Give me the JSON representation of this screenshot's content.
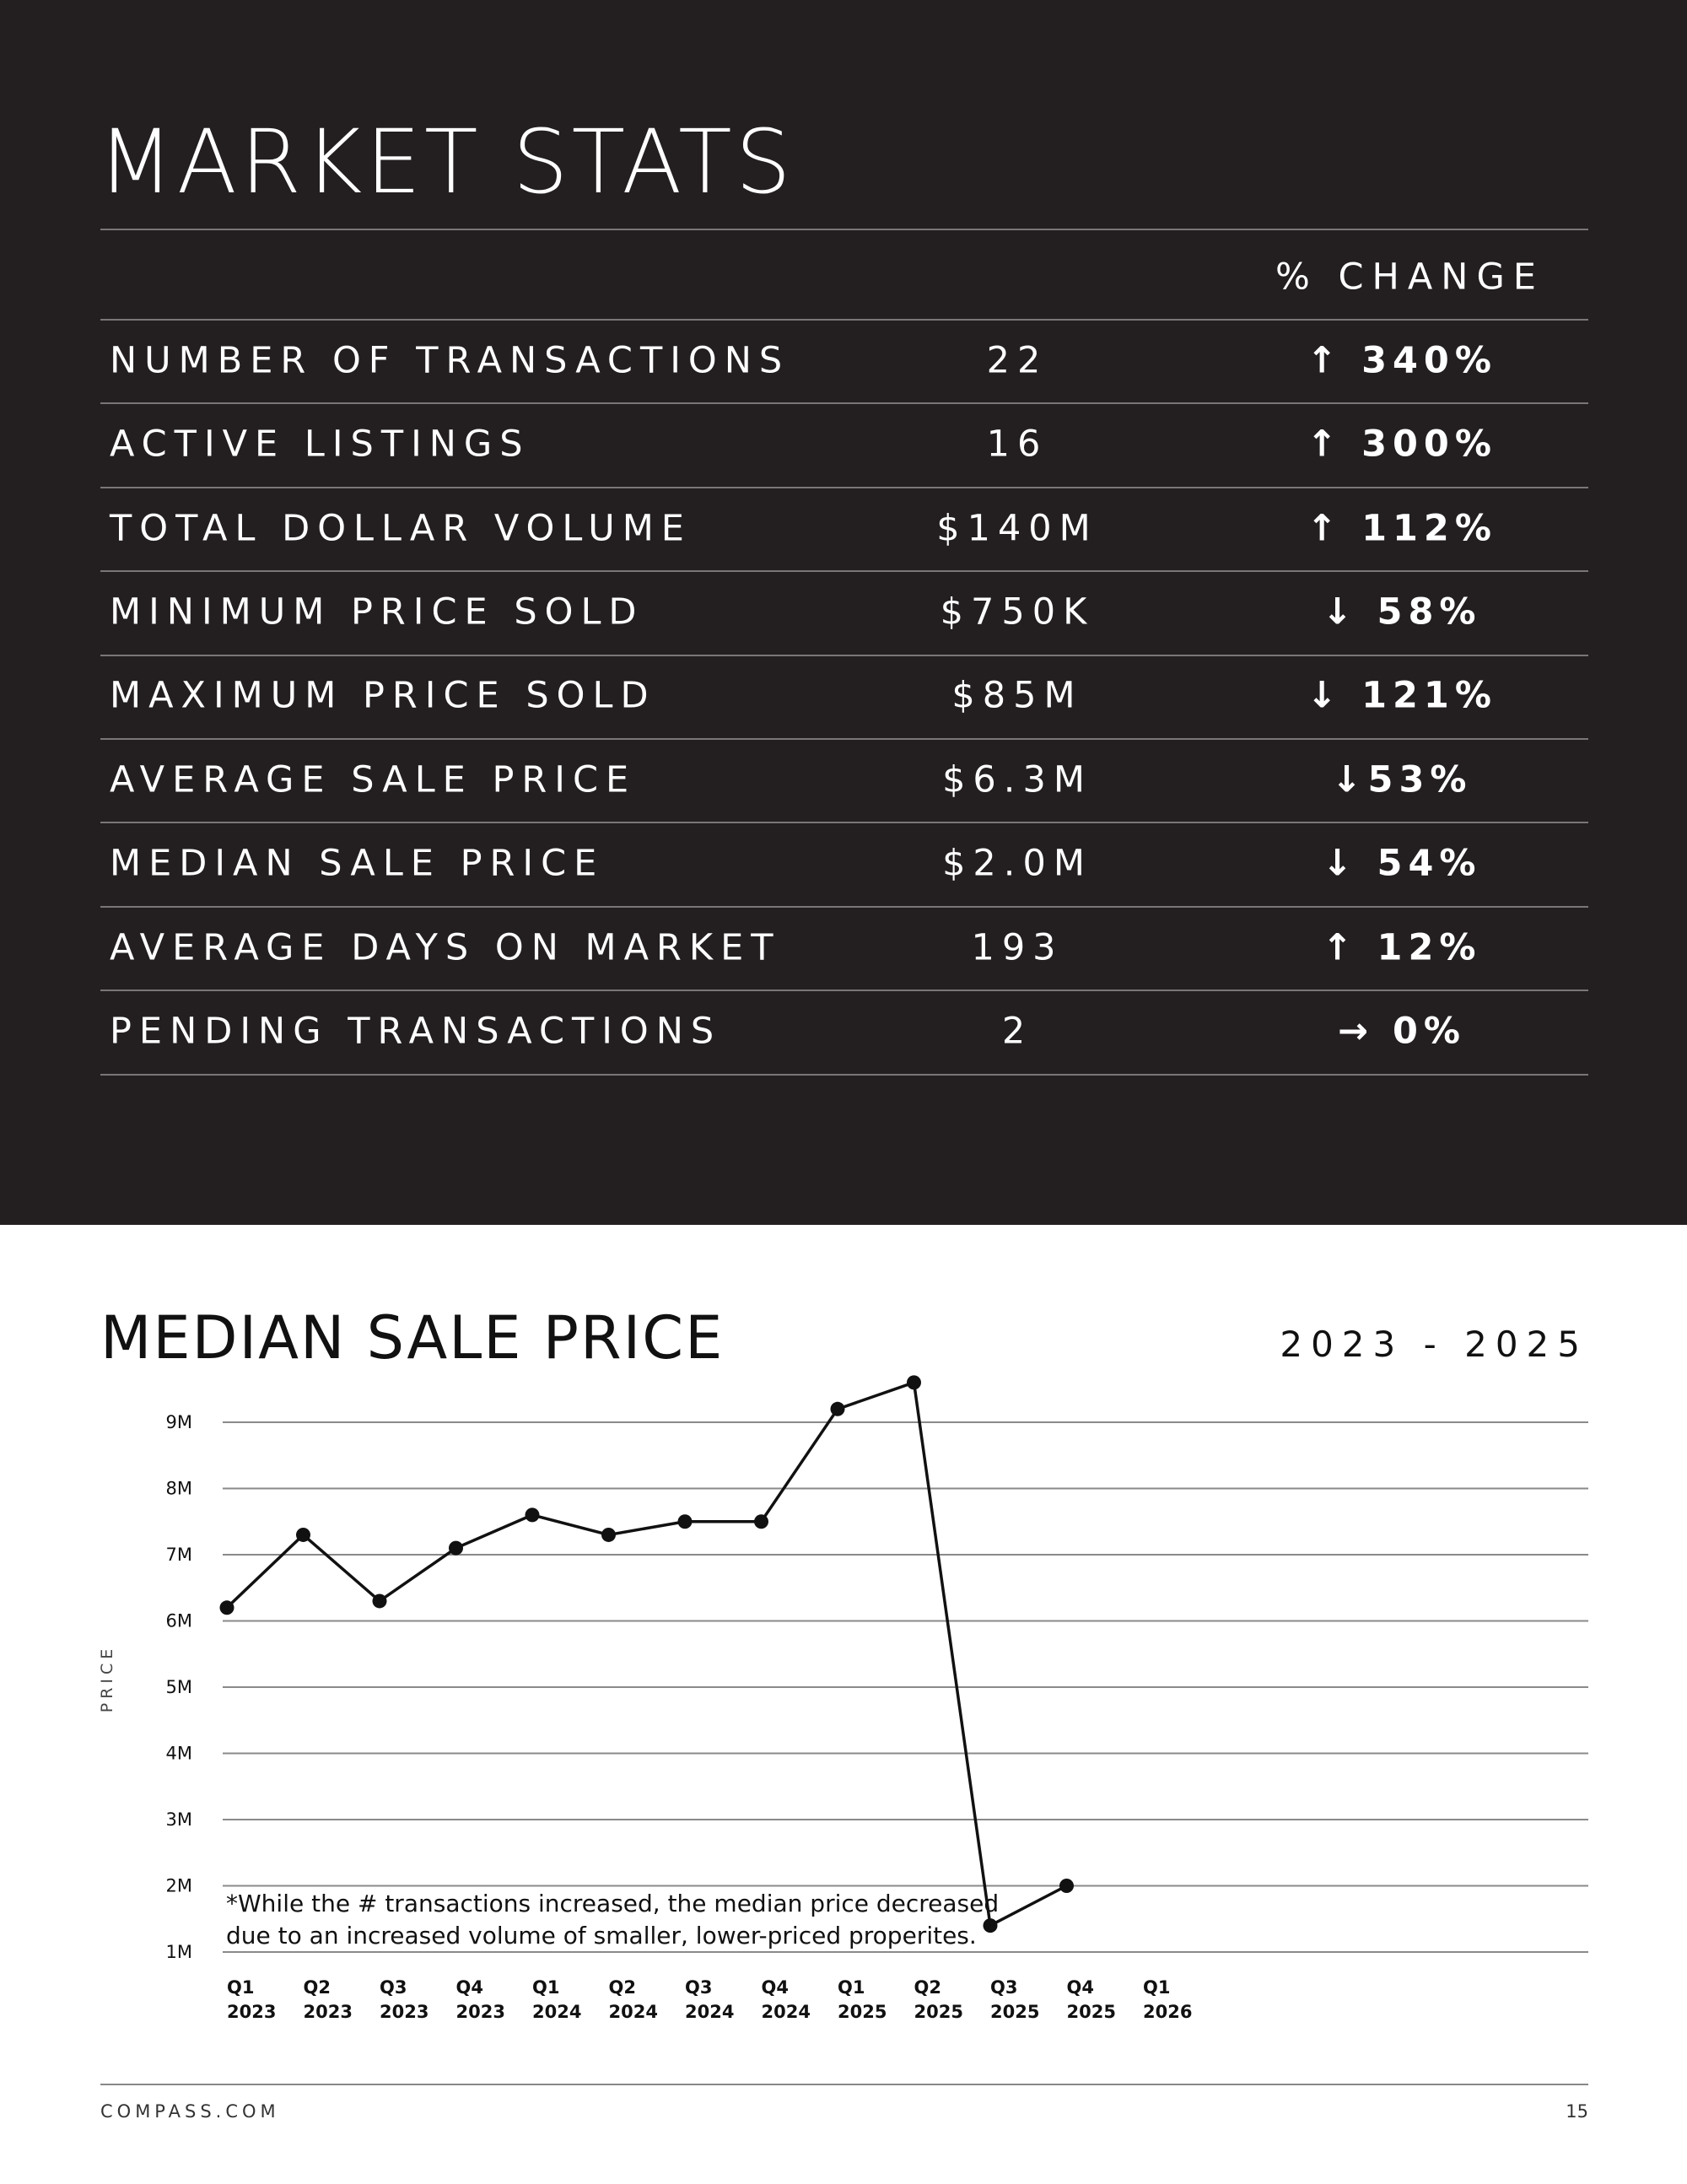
{
  "title": "MARKET STATS",
  "table": {
    "change_header": "% CHANGE",
    "rows": [
      [
        "NUMBER OF TRANSACTIONS",
        "22",
        "↑ 340%"
      ],
      [
        "ACTIVE LISTINGS",
        "16",
        "↑ 300%"
      ],
      [
        "TOTAL DOLLAR VOLUME",
        "$140M",
        "↑ 112%"
      ],
      [
        "MINIMUM PRICE SOLD",
        "$750K",
        "↓ 58%"
      ],
      [
        "MAXIMUM PRICE SOLD",
        "$85M",
        "↓ 121%"
      ],
      [
        "AVERAGE SALE PRICE",
        "$6.3M",
        "↓53%"
      ],
      [
        "MEDIAN SALE PRICE",
        "$2.0M",
        "↓ 54%"
      ],
      [
        "AVERAGE DAYS ON MARKET",
        "193",
        "↑ 12%"
      ],
      [
        "PENDING TRANSACTIONS",
        "2",
        "→ 0%"
      ]
    ]
  },
  "chart_data": {
    "type": "line",
    "title": "MEDIAN SALE PRICE",
    "subtitle": "2023 - 2025",
    "y_label": "PRICE",
    "annotation": [
      "*While the # transactions increased, the median price decreased",
      "due to an increased volume of smaller, lower-priced properites."
    ],
    "categories": [
      "Q1 2023",
      "Q2 2023",
      "Q3 2023",
      "Q4 2023",
      "Q1 2024",
      "Q2 2024",
      "Q3 2024",
      "Q4 2024",
      "Q1 2025",
      "Q2 2025",
      "Q3 2025",
      "Q4 2025",
      "Q1 2026"
    ],
    "values": [
      6200000,
      7300000,
      6300000,
      7100000,
      7600000,
      7300000,
      7500000,
      7500000,
      9200000,
      9600000,
      1400000,
      2000000,
      null
    ],
    "color": "#111111",
    "ylim": [
      1000000,
      9700000
    ],
    "yticks": [
      {
        "value": 1000000,
        "label": "1M"
      },
      {
        "value": 2000000,
        "label": "2M"
      },
      {
        "value": 3000000,
        "label": "3M"
      },
      {
        "value": 4000000,
        "label": "4M"
      },
      {
        "value": 5000000,
        "label": "5M"
      },
      {
        "value": 6000000,
        "label": "6M"
      },
      {
        "value": 7000000,
        "label": "7M"
      },
      {
        "value": 8000000,
        "label": "8M"
      },
      {
        "value": 9000000,
        "label": "9M"
      }
    ],
    "grid": true
  },
  "footer": {
    "site": "COMPASS.COM",
    "page": "15"
  }
}
